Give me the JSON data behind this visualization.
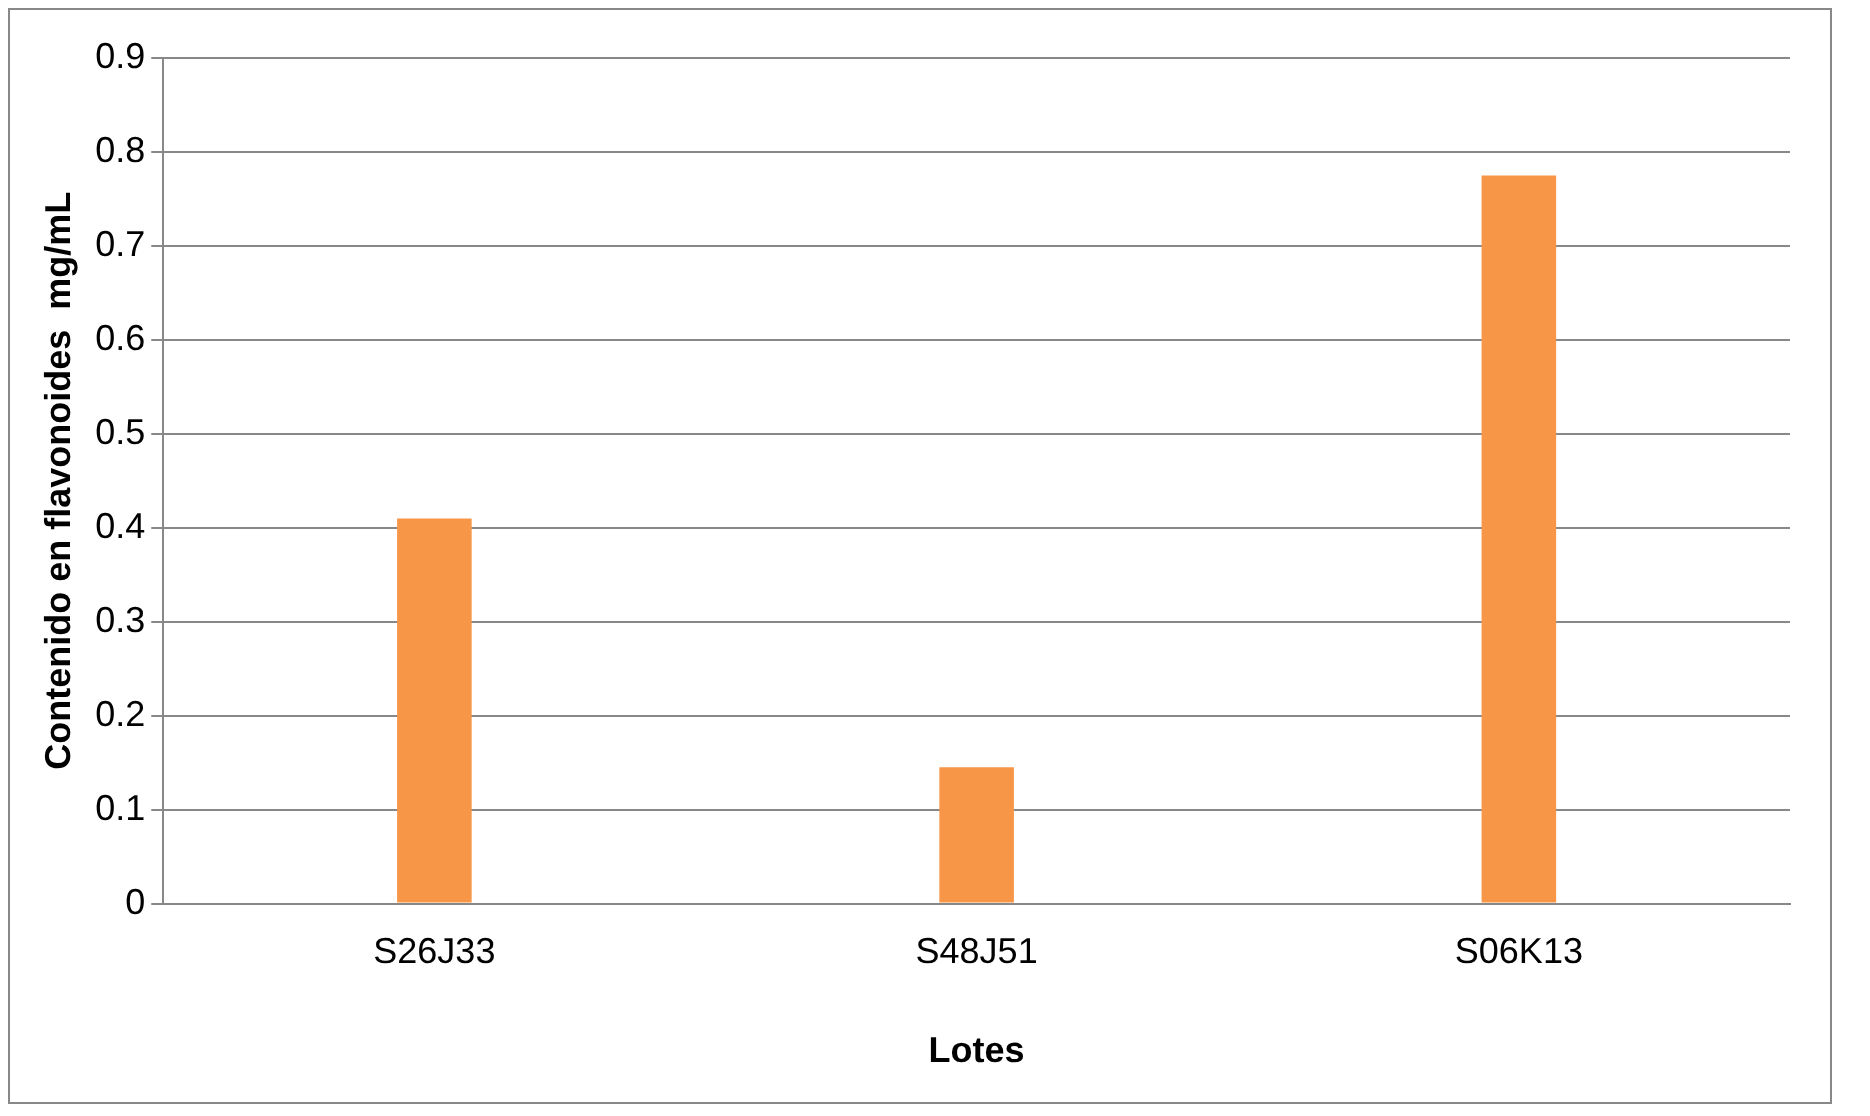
{
  "chart_data": {
    "type": "bar",
    "xlabel": "Lotes",
    "ylabel": "Contenido en flavonoides  mg/mL",
    "categories": [
      "S26J33",
      "S48J51",
      "S06K13"
    ],
    "values": [
      0.41,
      0.145,
      0.775
    ],
    "color": "#f79646",
    "ylim": [
      0,
      0.9
    ],
    "yticks": [
      0,
      0.1,
      0.2,
      0.3,
      0.4,
      0.5,
      0.6,
      0.7,
      0.8,
      0.9
    ],
    "grid": "y"
  }
}
